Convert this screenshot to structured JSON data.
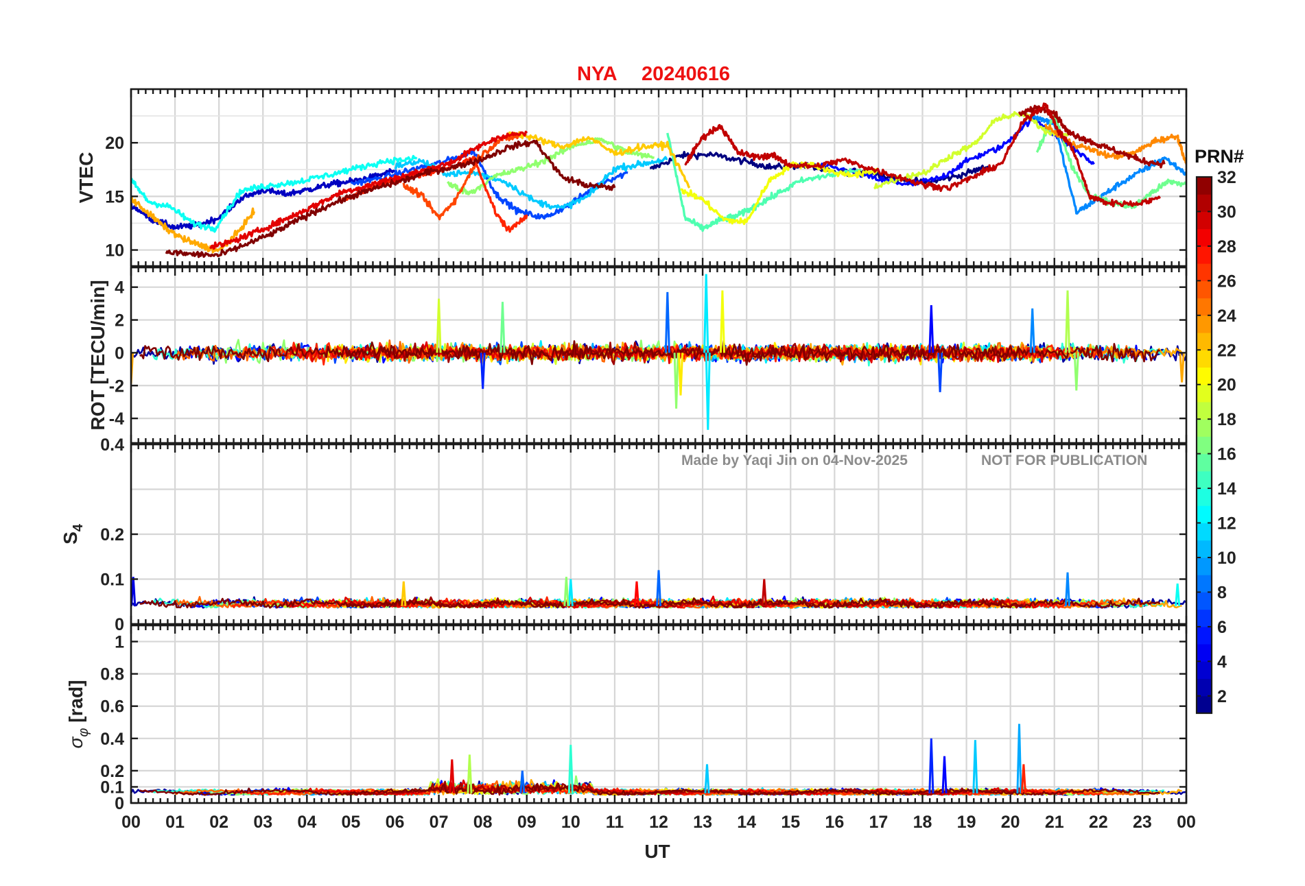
{
  "figure": {
    "title_station": "NYA",
    "title_date": "20240616",
    "xlabel": "UT",
    "watermark_left": "Made by Yaqi Jin on 04-Nov-2025",
    "watermark_right": "NOT FOR PUBLICATION"
  },
  "colorbar": {
    "title": "PRN#",
    "ticks": [
      "2",
      "4",
      "6",
      "8",
      "10",
      "12",
      "14",
      "16",
      "18",
      "20",
      "22",
      "24",
      "26",
      "28",
      "30",
      "32"
    ],
    "range": [
      1,
      32
    ],
    "colormap": "jet"
  },
  "chart_data": [
    {
      "panel": "vtec",
      "type": "line",
      "ylabel": "VTEC",
      "ylim": [
        8.5,
        25
      ],
      "yticks": [
        "10",
        "15",
        "20"
      ],
      "grid": true,
      "x_range_hours": [
        0,
        24
      ],
      "xticks": [
        "00",
        "01",
        "02",
        "03",
        "04",
        "05",
        "06",
        "07",
        "08",
        "09",
        "10",
        "11",
        "12",
        "13",
        "14",
        "15",
        "16",
        "17",
        "18",
        "19",
        "20",
        "21",
        "22",
        "23",
        "00"
      ],
      "series": [
        {
          "prn": 1,
          "x": [
            11.8,
            12.5,
            13.2,
            13.9,
            14.6,
            15.3,
            16.0,
            16.7,
            17.4,
            18.1,
            18.8,
            19.5
          ],
          "y": [
            17.5,
            18.8,
            18.9,
            18.3,
            17.7,
            17.9,
            17.2,
            17.4,
            16.6,
            16.3,
            16.9,
            17.8
          ]
        },
        {
          "prn": 3,
          "x": [
            0.0,
            0.5,
            1.0,
            1.5,
            2.0,
            2.5,
            3.0,
            3.5,
            4.0,
            4.5,
            5.0,
            5.5,
            6.0
          ],
          "y": [
            14.2,
            12.8,
            12.1,
            12.3,
            13.0,
            14.8,
            15.6,
            15.2,
            15.6,
            16.1,
            16.4,
            16.8,
            17.4
          ]
        },
        {
          "prn": 5,
          "x": [
            15.5,
            16.3,
            17.0,
            17.7,
            18.4,
            19.1,
            19.8,
            20.5,
            21.2,
            21.9
          ],
          "y": [
            18.0,
            17.4,
            16.6,
            16.1,
            16.7,
            18.5,
            19.6,
            22.3,
            20.2,
            18.0
          ]
        },
        {
          "prn": 7,
          "x": [
            5.0,
            5.7,
            6.4,
            7.1,
            7.8,
            8.3,
            8.8,
            9.4,
            10.0,
            10.7,
            11.3
          ],
          "y": [
            16.2,
            16.7,
            17.5,
            18.2,
            19.2,
            15.2,
            13.6,
            13.0,
            14.3,
            16.3,
            17.2
          ]
        },
        {
          "prn": 9,
          "x": [
            20.5,
            21.0,
            21.5,
            22.0,
            22.5,
            23.0,
            23.5,
            24.0
          ],
          "y": [
            22.5,
            21.8,
            13.5,
            14.8,
            16.2,
            17.4,
            18.6,
            17.1
          ]
        },
        {
          "prn": 11,
          "x": [
            6.0,
            6.6,
            7.2,
            7.8,
            8.5,
            9.2,
            9.8,
            10.4,
            11.0,
            11.6,
            12.2
          ],
          "y": [
            17.8,
            18.3,
            17.1,
            17.2,
            16.4,
            14.5,
            13.9,
            15.0,
            17.6,
            18.0,
            18.5
          ]
        },
        {
          "prn": 13,
          "x": [
            0.0,
            0.4,
            0.9,
            1.4,
            1.9,
            2.5,
            3.1,
            3.7,
            4.4,
            5.1,
            5.8,
            6.5
          ],
          "y": [
            16.5,
            14.5,
            14.0,
            12.5,
            12.0,
            15.5,
            16.0,
            16.3,
            16.9,
            17.6,
            18.3,
            18.5
          ]
        },
        {
          "prn": 15,
          "x": [
            12.2,
            12.6,
            13.0,
            13.4,
            13.8,
            14.2,
            14.6,
            15.2,
            15.9,
            16.6
          ],
          "y": [
            21.0,
            13.0,
            12.0,
            12.8,
            13.2,
            14.1,
            15.0,
            16.4,
            17.0,
            17.5
          ]
        },
        {
          "prn": 16,
          "x": [
            20.6,
            21.0,
            21.4,
            21.8,
            22.3,
            22.8,
            23.2,
            23.6,
            24.0
          ],
          "y": [
            19.0,
            22.6,
            17.8,
            15.1,
            14.4,
            14.0,
            15.3,
            16.4,
            16.1
          ]
        },
        {
          "prn": 17,
          "x": [
            7.2,
            7.7,
            8.3,
            8.9,
            9.5,
            10.1,
            10.7,
            11.3,
            11.9
          ],
          "y": [
            16.2,
            15.3,
            16.9,
            17.6,
            18.5,
            19.8,
            20.3,
            19.1,
            18.6
          ]
        },
        {
          "prn": 19,
          "x": [
            16.9,
            17.5,
            18.1,
            18.6,
            19.2,
            19.7,
            20.3,
            20.8,
            21.3
          ],
          "y": [
            15.9,
            16.7,
            17.3,
            18.7,
            19.9,
            22.3,
            22.7,
            21.1,
            20.6
          ]
        },
        {
          "prn": 20,
          "x": [
            12.5,
            13.0,
            13.5,
            14.0,
            14.5,
            15.0,
            15.5,
            16.0,
            16.5,
            17.0
          ],
          "y": [
            15.6,
            14.7,
            12.8,
            12.6,
            16.4,
            17.9,
            18.0,
            17.2,
            17.0,
            17.4
          ]
        },
        {
          "prn": 22,
          "x": [
            8.6,
            9.2,
            9.8,
            10.4,
            11.0,
            11.6,
            12.2,
            12.7
          ],
          "y": [
            21.0,
            20.4,
            19.6,
            20.5,
            19.0,
            19.6,
            19.8,
            15.8
          ]
        },
        {
          "prn": 23,
          "x": [
            0.0,
            0.4,
            0.8,
            1.2,
            1.6,
            2.0,
            2.4,
            2.8
          ],
          "y": [
            14.8,
            13.4,
            12.0,
            11.0,
            10.4,
            9.9,
            11.5,
            13.6
          ]
        },
        {
          "prn": 24,
          "x": [
            20.8,
            21.3,
            21.8,
            22.3,
            22.8,
            23.3,
            23.8,
            24.0
          ],
          "y": [
            21.6,
            20.1,
            19.4,
            18.7,
            19.0,
            20.2,
            20.6,
            18.0
          ]
        },
        {
          "prn": 26,
          "x": [
            6.2,
            6.6,
            7.0,
            7.4,
            7.9,
            8.4,
            8.8
          ],
          "y": [
            16.0,
            15.1,
            13.0,
            14.8,
            18.6,
            20.3,
            20.6
          ]
        },
        {
          "prn": 27,
          "x": [
            4.8,
            5.3,
            5.8,
            6.3,
            6.8,
            7.3,
            7.8,
            8.3,
            8.6,
            9.0
          ],
          "y": [
            14.6,
            15.5,
            16.3,
            16.7,
            17.2,
            17.7,
            18.6,
            13.4,
            11.8,
            13.3
          ]
        },
        {
          "prn": 29,
          "x": [
            1.8,
            2.3,
            2.8,
            3.3,
            3.8,
            4.3,
            4.8,
            5.3,
            5.8,
            6.3,
            6.8,
            7.3,
            7.8,
            8.4,
            9.0
          ],
          "y": [
            10.2,
            10.8,
            11.6,
            12.5,
            13.4,
            14.4,
            15.4,
            15.9,
            16.5,
            17.0,
            17.6,
            18.2,
            19.4,
            20.6,
            20.9
          ]
        },
        {
          "prn": 31,
          "x": [
            20.2,
            20.6,
            21.0,
            21.3,
            21.6,
            22.0,
            22.5,
            23.0,
            23.5
          ],
          "y": [
            22.6,
            23.3,
            22.8,
            21.0,
            20.5,
            19.8,
            19.1,
            18.3,
            18.0
          ]
        },
        {
          "prn": 32,
          "x": [
            0.8,
            1.4,
            2.0,
            2.6,
            3.2,
            3.8,
            4.4,
            5.0,
            5.6,
            6.2,
            6.8,
            7.4,
            8.0,
            8.6,
            9.2,
            9.8,
            10.4,
            11.0
          ],
          "y": [
            9.8,
            9.6,
            9.5,
            10.5,
            11.5,
            12.8,
            14.0,
            15.0,
            15.8,
            16.5,
            17.3,
            17.8,
            18.5,
            19.6,
            20.1,
            16.8,
            16.0,
            15.8
          ]
        },
        {
          "prn": 30,
          "x": [
            12.6,
            13.0,
            13.4,
            13.8,
            14.2,
            14.6,
            15.0,
            15.6,
            16.2,
            16.8,
            17.4,
            18.0,
            18.6,
            19.2,
            19.8,
            20.3,
            20.8,
            21.1,
            21.4,
            21.8,
            22.2,
            22.8,
            23.4
          ],
          "y": [
            18.0,
            20.5,
            21.6,
            19.1,
            18.7,
            18.8,
            17.9,
            17.8,
            18.4,
            17.6,
            16.9,
            16.1,
            15.8,
            16.9,
            18.1,
            22.0,
            23.6,
            21.0,
            19.6,
            15.0,
            14.4,
            14.3,
            14.8
          ]
        }
      ]
    },
    {
      "panel": "rot",
      "type": "line",
      "ylabel": "ROT [TECU/min]",
      "ylim": [
        -5.5,
        5.2
      ],
      "yticks": [
        "-4",
        "-2",
        "0",
        "2",
        "4"
      ],
      "grid": true,
      "baseline": 0,
      "spikes": [
        {
          "prn": 8,
          "x": 12.2,
          "y": 3.7
        },
        {
          "prn": 12,
          "x": 13.08,
          "y": 4.8
        },
        {
          "prn": 12,
          "x": 13.12,
          "y": -4.7
        },
        {
          "prn": 20,
          "x": 13.45,
          "y": 3.8
        },
        {
          "prn": 19,
          "x": 7.0,
          "y": 3.3
        },
        {
          "prn": 16,
          "x": 8.45,
          "y": 3.1
        },
        {
          "prn": 17,
          "x": 12.4,
          "y": -3.4
        },
        {
          "prn": 21,
          "x": 12.5,
          "y": -2.6
        },
        {
          "prn": 5,
          "x": 18.2,
          "y": 2.9
        },
        {
          "prn": 7,
          "x": 18.4,
          "y": -2.4
        },
        {
          "prn": 18,
          "x": 21.3,
          "y": 3.8
        },
        {
          "prn": 17,
          "x": 21.5,
          "y": -2.3
        },
        {
          "prn": 9,
          "x": 20.5,
          "y": 2.7
        },
        {
          "prn": 6,
          "x": 8.0,
          "y": -2.2
        },
        {
          "prn": 23,
          "x": 0.0,
          "y": -1.9
        },
        {
          "prn": 23,
          "x": 23.9,
          "y": -1.8
        }
      ]
    },
    {
      "panel": "s4",
      "type": "line",
      "ylabel": "S4",
      "ylim": [
        0,
        0.4
      ],
      "yticks": [
        "0",
        "0.1",
        "0.2",
        "0.4"
      ],
      "grid": true,
      "baseline": 0.04,
      "spikes": [
        {
          "prn": 8,
          "x": 12.0,
          "y": 0.12
        },
        {
          "prn": 9,
          "x": 21.3,
          "y": 0.115
        },
        {
          "prn": 28,
          "x": 11.5,
          "y": 0.095
        },
        {
          "prn": 30,
          "x": 14.4,
          "y": 0.1
        },
        {
          "prn": 4,
          "x": 0.05,
          "y": 0.105
        },
        {
          "prn": 12,
          "x": 10.0,
          "y": 0.1
        },
        {
          "prn": 17,
          "x": 9.9,
          "y": 0.105
        },
        {
          "prn": 22,
          "x": 6.2,
          "y": 0.095
        },
        {
          "prn": 13,
          "x": 23.8,
          "y": 0.09
        }
      ]
    },
    {
      "panel": "sigma_phi",
      "type": "line",
      "ylabel": "σ_φ [rad]",
      "ylim": [
        0,
        1.1
      ],
      "yticks": [
        "0",
        "0.1",
        "0.2",
        "0.4",
        "0.6",
        "0.8",
        "1"
      ],
      "grid": true,
      "baseline": 0.06,
      "spikes": [
        {
          "prn": 6,
          "x": 18.2,
          "y": 0.4
        },
        {
          "prn": 11,
          "x": 19.2,
          "y": 0.39
        },
        {
          "prn": 10,
          "x": 20.2,
          "y": 0.49
        },
        {
          "prn": 14,
          "x": 10.0,
          "y": 0.36
        },
        {
          "prn": 18,
          "x": 7.7,
          "y": 0.3
        },
        {
          "prn": 29,
          "x": 7.3,
          "y": 0.27
        },
        {
          "prn": 11,
          "x": 13.1,
          "y": 0.24
        },
        {
          "prn": 27,
          "x": 20.3,
          "y": 0.24
        },
        {
          "prn": 8,
          "x": 8.9,
          "y": 0.2
        },
        {
          "prn": 5,
          "x": 18.5,
          "y": 0.29
        }
      ]
    }
  ]
}
